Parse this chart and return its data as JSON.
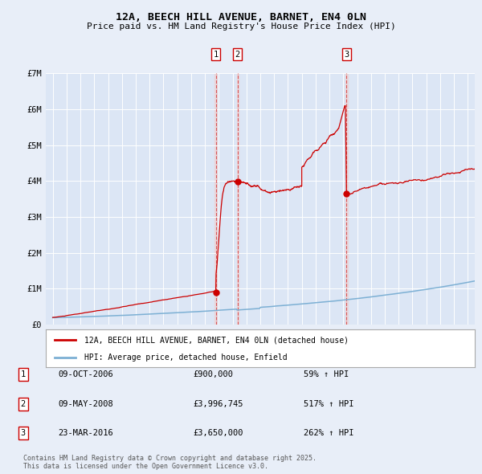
{
  "title1": "12A, BEECH HILL AVENUE, BARNET, EN4 0LN",
  "title2": "Price paid vs. HM Land Registry's House Price Index (HPI)",
  "bg_color": "#e8eef8",
  "plot_bg_color": "#dce6f5",
  "grid_color": "#ffffff",
  "red_line_color": "#cc0000",
  "blue_line_color": "#7db0d4",
  "legend1": "12A, BEECH HILL AVENUE, BARNET, EN4 0LN (detached house)",
  "legend2": "HPI: Average price, detached house, Enfield",
  "transaction1": {
    "date_label": "09-OCT-2006",
    "price_label": "£900,000",
    "hpi_label": "59% ↑ HPI",
    "year": 2006.78,
    "price": 900000
  },
  "transaction2": {
    "date_label": "09-MAY-2008",
    "price_label": "£3,996,745",
    "hpi_label": "517% ↑ HPI",
    "year": 2008.36,
    "price": 3996745
  },
  "transaction3": {
    "date_label": "23-MAR-2016",
    "price_label": "£3,650,000",
    "hpi_label": "262% ↑ HPI",
    "year": 2016.23,
    "price": 3650000
  },
  "footer": "Contains HM Land Registry data © Crown copyright and database right 2025.\nThis data is licensed under the Open Government Licence v3.0.",
  "ylim": [
    0,
    7000000
  ],
  "xlim_start": 1994.5,
  "xlim_end": 2025.5,
  "yticks": [
    0,
    1000000,
    2000000,
    3000000,
    4000000,
    5000000,
    6000000,
    7000000
  ],
  "ylabels": [
    "£0",
    "£1M",
    "£2M",
    "£3M",
    "£4M",
    "£5M",
    "£6M",
    "£7M"
  ],
  "xticks": [
    1995,
    1996,
    1997,
    1998,
    1999,
    2000,
    2001,
    2002,
    2003,
    2004,
    2005,
    2006,
    2007,
    2008,
    2009,
    2010,
    2011,
    2012,
    2013,
    2014,
    2015,
    2016,
    2017,
    2018,
    2019,
    2020,
    2021,
    2022,
    2023,
    2024,
    2025
  ]
}
